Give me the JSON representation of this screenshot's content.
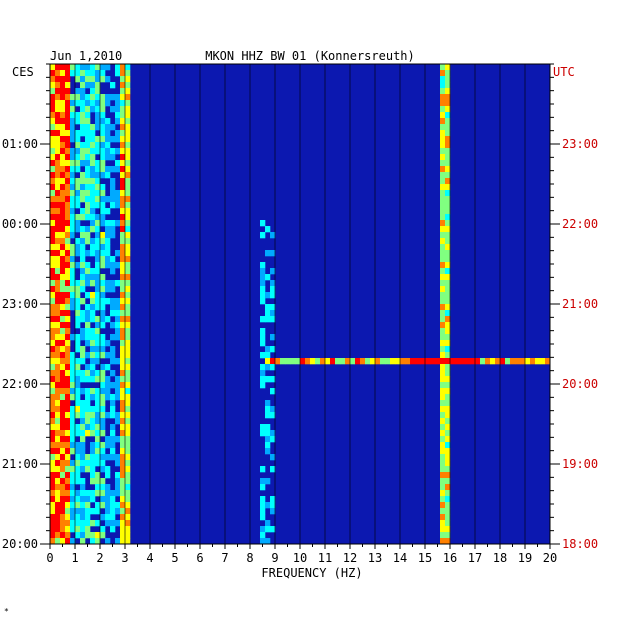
{
  "chart_data": {
    "type": "heatmap",
    "title_date": "Jun 1,2010",
    "title_station": "MKON HHZ BW 01 (Konnersreuth)",
    "left_timezone": "CES",
    "right_timezone": "UTC",
    "xlabel": "FREQUENCY (HZ)",
    "xlim": [
      0,
      20
    ],
    "x_ticks": [
      "0",
      "1",
      "2",
      "3",
      "4",
      "5",
      "6",
      "7",
      "8",
      "9",
      "10",
      "11",
      "12",
      "13",
      "14",
      "15",
      "16",
      "17",
      "18",
      "19",
      "20"
    ],
    "left_time_labels": [
      "01:00",
      "00:00",
      "23:00",
      "22:00",
      "21:00",
      "20:00"
    ],
    "right_time_labels": [
      "23:00",
      "22:00",
      "21:00",
      "20:00",
      "19:00",
      "18:00"
    ],
    "left_label_color": "#000000",
    "right_label_color": "#cc0000",
    "background_color": "#0c18b0",
    "colormap": [
      "#00008c",
      "#0000ff",
      "#00aaff",
      "#00ffff",
      "#80ff80",
      "#ffff00",
      "#ff8000",
      "#ff0000"
    ],
    "features": {
      "low_frequency_band_hz": [
        0,
        3
      ],
      "persistent_lines_hz": [
        3.0,
        15.8
      ],
      "horizontal_event_row_utc": "20:15"
    }
  },
  "footnote": "*"
}
